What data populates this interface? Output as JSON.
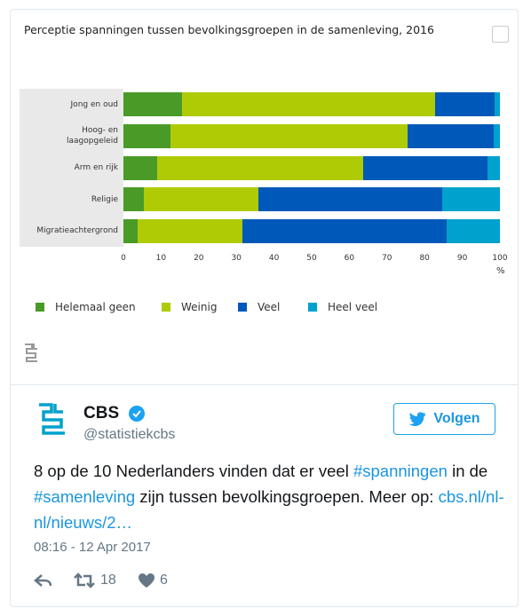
{
  "chart_data": {
    "type": "stacked-barh",
    "title": "Perceptie spanningen tussen bevolkingsgroepen in de samenleving, 2016",
    "categories": [
      "Jong en oud",
      "Hoog- en\nlaagopgeleid",
      "Arm en rijk",
      "Religie",
      "Migratieachtergrond"
    ],
    "series": [
      {
        "name": "Helemaal geen",
        "color": "#4a9a27",
        "values": [
          15.5,
          12.5,
          9,
          5.4,
          3.8
        ]
      },
      {
        "name": "Weinig",
        "color": "#afcb05",
        "values": [
          67.3,
          63,
          54.7,
          30.4,
          27.8
        ]
      },
      {
        "name": "Veel",
        "color": "#0058b8",
        "values": [
          15.8,
          22.8,
          33,
          48.9,
          54.2
        ]
      },
      {
        "name": "Heel veel",
        "color": "#00a1cd",
        "values": [
          1.4,
          1.7,
          3.3,
          15.3,
          14.2
        ]
      }
    ],
    "xlim": [
      0,
      100
    ],
    "xticks": [
      0,
      10,
      20,
      30,
      40,
      50,
      60,
      70,
      80,
      90,
      100
    ],
    "xlabel": "%",
    "grid": false,
    "legend": "bottom"
  },
  "tweet": {
    "name": "CBS",
    "handle": "@statistiekcbs",
    "follow": "Volgen",
    "text_parts": [
      {
        "text": "8 op de 10 Nederlanders vinden dat er veel ",
        "link": false
      },
      {
        "text": "#spanningen",
        "link": true
      },
      {
        "text": " in de ",
        "link": false
      },
      {
        "text": "#samenleving",
        "link": true
      },
      {
        "text": " zijn tussen bevolkingsgroepen. Meer op: ",
        "link": false
      },
      {
        "text": "cbs.nl/nl-nl/nieuws/2…",
        "link": true
      }
    ],
    "time": "08:16 - 12 Apr 2017",
    "retweets": 18,
    "likes": 6
  }
}
